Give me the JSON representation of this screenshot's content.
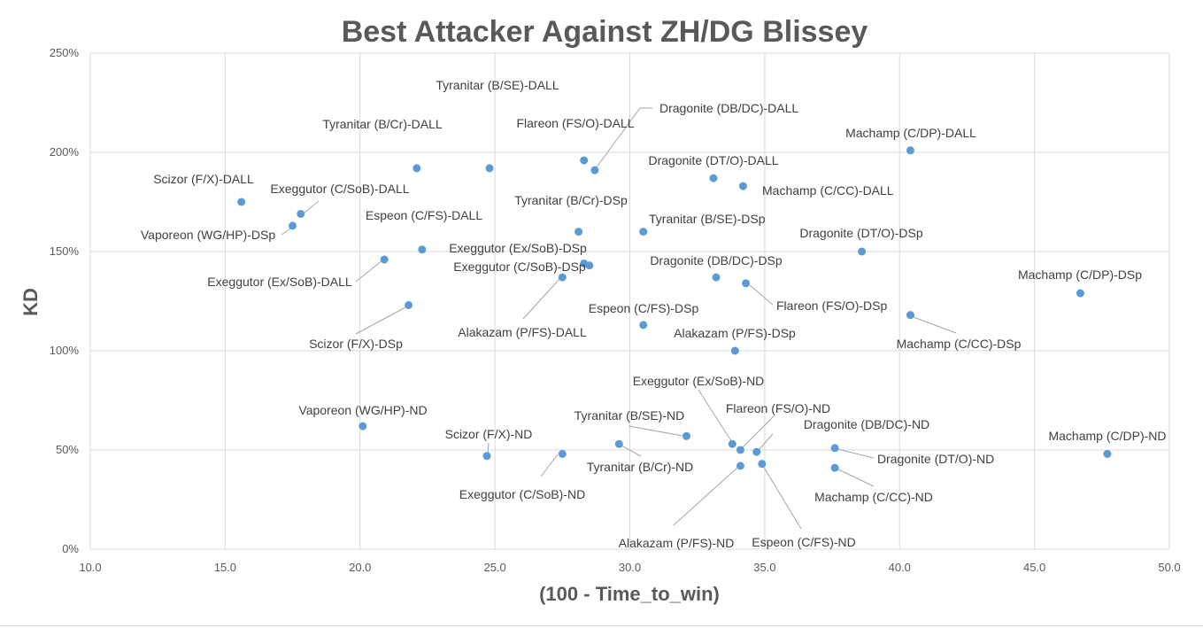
{
  "chart_data": {
    "type": "scatter",
    "title": "Best Attacker Against ZH/DG Blissey",
    "xlabel": "(100 - Time_to_win)",
    "ylabel": "KD",
    "xlim": [
      10,
      50
    ],
    "ylim": [
      0,
      2.5
    ],
    "x_ticks": [
      "10.0",
      "15.0",
      "20.0",
      "25.0",
      "30.0",
      "35.0",
      "40.0",
      "45.0",
      "50.0"
    ],
    "y_ticks": [
      "0%",
      "50%",
      "100%",
      "150%",
      "200%",
      "250%"
    ],
    "grid": true,
    "marker_color": "#5b9bd5",
    "points": [
      {
        "label": "Scizor (F/X)-DALL",
        "x": 15.6,
        "y": 1.75
      },
      {
        "label": "Exeggutor (C/SoB)-DALL",
        "x": 17.8,
        "y": 1.69
      },
      {
        "label": "Vaporeon (WG/HP)-DSp",
        "x": 17.5,
        "y": 1.63
      },
      {
        "label": "Exeggutor (Ex/SoB)-DALL",
        "x": 20.9,
        "y": 1.46
      },
      {
        "label": "Scizor (F/X)-DSp",
        "x": 21.8,
        "y": 1.23
      },
      {
        "label": "Tyranitar (B/Cr)-DALL",
        "x": 22.1,
        "y": 1.92
      },
      {
        "label": "Espeon (C/FS)-DALL",
        "x": 22.3,
        "y": 1.51
      },
      {
        "label": "Tyranitar (B/SE)-DALL",
        "x": 24.8,
        "y": 1.92
      },
      {
        "label": "Flareon (FS/O)-DALL",
        "x": 28.3,
        "y": 1.96
      },
      {
        "label": "Dragonite (DB/DC)-DALL",
        "x": 28.7,
        "y": 1.91
      },
      {
        "label": "Tyranitar (B/Cr)-DSp",
        "x": 28.1,
        "y": 1.6
      },
      {
        "label": "Exeggutor (Ex/SoB)-DSp",
        "x": 28.3,
        "y": 1.44
      },
      {
        "label": "Exeggutor (C/SoB)-DSp",
        "x": 28.5,
        "y": 1.43
      },
      {
        "label": "Alakazam (P/FS)-DALL",
        "x": 27.5,
        "y": 1.37
      },
      {
        "label": "Tyranitar (B/SE)-DSp",
        "x": 30.5,
        "y": 1.6
      },
      {
        "label": "Espeon (C/FS)-DSp",
        "x": 30.5,
        "y": 1.13
      },
      {
        "label": "Dragonite (DT/O)-DALL",
        "x": 33.1,
        "y": 1.87
      },
      {
        "label": "Machamp (C/CC)-DALL",
        "x": 34.2,
        "y": 1.83
      },
      {
        "label": "Dragonite (DB/DC)-DSp",
        "x": 33.2,
        "y": 1.37
      },
      {
        "label": "Flareon (FS/O)-DSp",
        "x": 34.3,
        "y": 1.34
      },
      {
        "label": "Alakazam (P/FS)-DSp",
        "x": 33.9,
        "y": 1.0
      },
      {
        "label": "Machamp (C/DP)-DALL",
        "x": 40.4,
        "y": 2.01
      },
      {
        "label": "Dragonite (DT/O)-DSp",
        "x": 38.6,
        "y": 1.5
      },
      {
        "label": "Machamp (C/CC)-DSp",
        "x": 40.4,
        "y": 1.18
      },
      {
        "label": "Machamp (C/DP)-DSp",
        "x": 46.7,
        "y": 1.29
      },
      {
        "label": "Vaporeon (WG/HP)-ND",
        "x": 20.1,
        "y": 0.62
      },
      {
        "label": "Scizor (F/X)-ND",
        "x": 24.7,
        "y": 0.47
      },
      {
        "label": "Exeggutor (C/SoB)-ND",
        "x": 27.5,
        "y": 0.48
      },
      {
        "label": "Tyranitar (B/Cr)-ND",
        "x": 29.6,
        "y": 0.53
      },
      {
        "label": "Tyranitar (B/SE)-ND",
        "x": 32.1,
        "y": 0.57
      },
      {
        "label": "Exeggutor (Ex/SoB)-ND",
        "x": 33.8,
        "y": 0.53
      },
      {
        "label": "Flareon (FS/O)-ND",
        "x": 34.1,
        "y": 0.5
      },
      {
        "label": "Dragonite (DB/DC)-ND",
        "x": 34.7,
        "y": 0.49
      },
      {
        "label": "Alakazam (P/FS)-ND",
        "x": 34.1,
        "y": 0.42
      },
      {
        "label": "Espeon (C/FS)-ND",
        "x": 34.9,
        "y": 0.43
      },
      {
        "label": "Dragonite (DT/O)-ND",
        "x": 37.6,
        "y": 0.51
      },
      {
        "label": "Machamp (C/CC)-ND",
        "x": 37.6,
        "y": 0.41
      },
      {
        "label": "Machamp (C/DP)-ND",
        "x": 47.7,
        "y": 0.48
      }
    ]
  }
}
